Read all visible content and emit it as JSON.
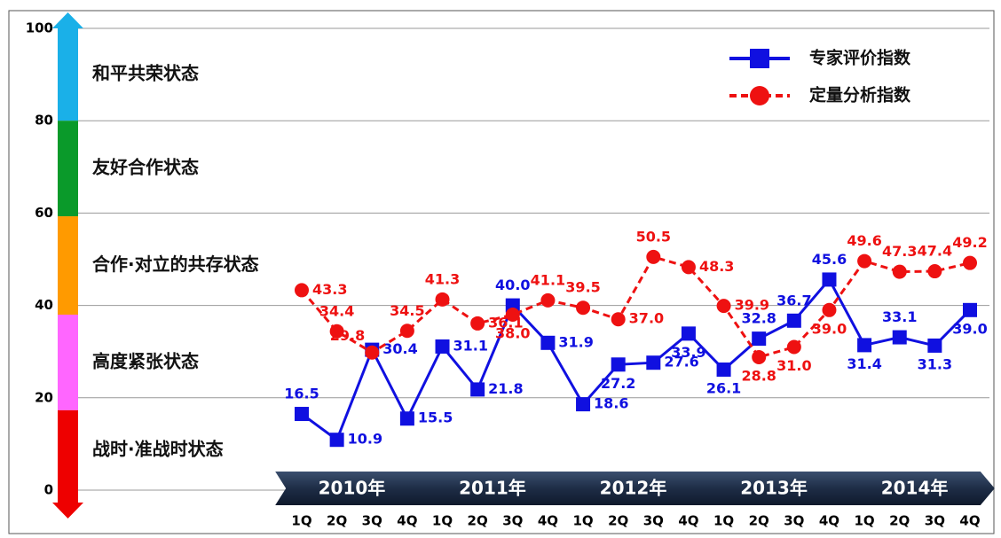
{
  "chart_data": {
    "type": "line",
    "categories": [
      "1Q",
      "2Q",
      "3Q",
      "4Q",
      "1Q",
      "2Q",
      "3Q",
      "4Q",
      "1Q",
      "2Q",
      "3Q",
      "4Q",
      "1Q",
      "2Q",
      "3Q",
      "4Q",
      "1Q",
      "2Q",
      "3Q",
      "4Q"
    ],
    "years": [
      "2010年",
      "2011年",
      "2012年",
      "2013年",
      "2014年"
    ],
    "ylim": [
      0,
      100
    ],
    "yticks": [
      0,
      20,
      40,
      60,
      80,
      100
    ],
    "grid": true,
    "bands": [
      {
        "name": "和平共荣状态",
        "from": 80,
        "to": 100,
        "color": "#1ab0e8"
      },
      {
        "name": "友好合作状态",
        "from": 59.3,
        "to": 80,
        "color": "#0a9a2a"
      },
      {
        "name": "合作·对立的共存状态",
        "from": 38,
        "to": 59.3,
        "color": "#ff9a00"
      },
      {
        "name": "高度紧张状态",
        "from": 17.3,
        "to": 38,
        "color": "#ff66ff"
      },
      {
        "name": "战时·准战时状态",
        "from": 0,
        "to": 17.3,
        "color": "#ee0000"
      }
    ],
    "legend": "top-right",
    "series": [
      {
        "name": "专家评价指数",
        "color": "#1010e0",
        "dash": false,
        "values": [
          16.5,
          10.9,
          30.4,
          15.5,
          31.1,
          21.8,
          40.0,
          31.9,
          18.6,
          27.2,
          27.6,
          33.9,
          26.1,
          32.8,
          36.7,
          45.6,
          31.4,
          33.1,
          31.3,
          39.0
        ],
        "value_labels": [
          "16.5",
          "10.9",
          "30.4",
          "15.5",
          "31.1",
          "21.8",
          "40.0",
          "31.9",
          "18.6",
          "27.2",
          "27.6",
          "33.9",
          "26.1",
          "32.8",
          "36.7",
          "45.6",
          "31.4",
          "33.1",
          "31.3",
          "39.0"
        ]
      },
      {
        "name": "定量分析指数",
        "color": "#ee1111",
        "dash": true,
        "values": [
          43.3,
          34.4,
          29.8,
          34.5,
          41.3,
          36.1,
          38.0,
          41.1,
          39.5,
          37.0,
          50.5,
          48.3,
          39.9,
          28.8,
          31.0,
          39.0,
          49.6,
          47.3,
          47.4,
          49.2
        ],
        "value_labels": [
          "43.3",
          "34.4",
          "29.8",
          "34.5",
          "41.3",
          "36.1",
          "38.0",
          "41.1",
          "39.5",
          "37.0",
          "50.5",
          "48.3",
          "39.9",
          "28.8",
          "31.0",
          "39.0",
          "49.6",
          "47.3",
          "47.4",
          "49.2"
        ]
      }
    ]
  }
}
